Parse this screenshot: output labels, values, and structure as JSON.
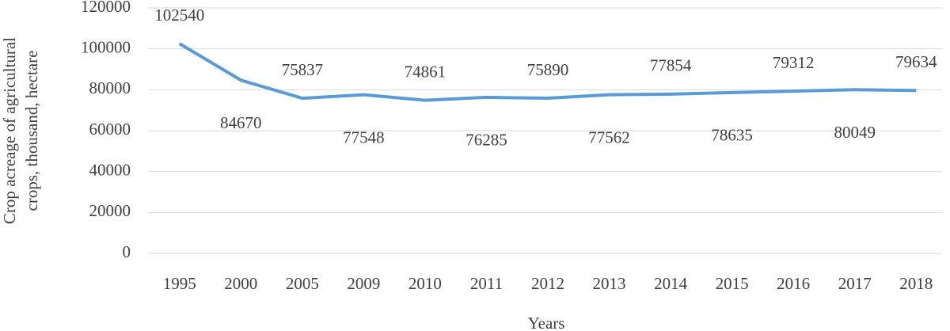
{
  "chart_data": {
    "type": "line",
    "xlabel": "Years",
    "ylabel": [
      "Crop acreage of agricultural",
      "crops, thousand, hectare"
    ],
    "categories": [
      "1995",
      "2000",
      "2005",
      "2009",
      "2010",
      "2011",
      "2012",
      "2013",
      "2014",
      "2015",
      "2016",
      "2017",
      "2018"
    ],
    "series": [
      {
        "color": "#5b9bd5",
        "values": [
          102540,
          84670,
          75837,
          77548,
          74861,
          76285,
          75890,
          77562,
          77854,
          78635,
          79312,
          80049,
          79634
        ]
      }
    ],
    "ylim": [
      0,
      120000
    ],
    "yticks": [
      0,
      20000,
      40000,
      60000,
      80000,
      100000,
      120000
    ],
    "grid": true
  }
}
